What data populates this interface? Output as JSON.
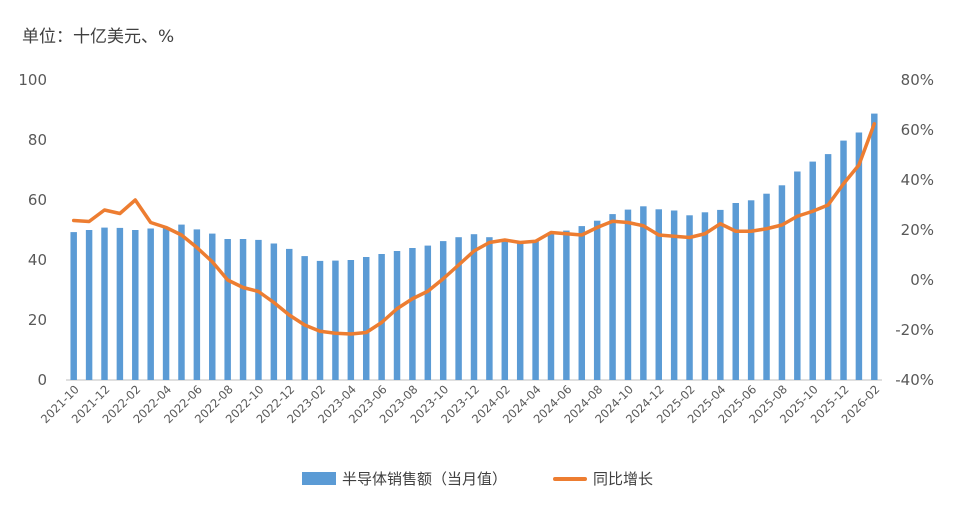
{
  "unit_label": "单位：十亿美元、%",
  "colors": {
    "bar": "#5b9bd5",
    "line": "#ed7d31",
    "axis": "#bfbfbf",
    "text": "#595959"
  },
  "legend": {
    "bar_label": "半导体销售额（当月值）",
    "line_label": "同比增长"
  },
  "chart_data": {
    "type": "bar",
    "title": "",
    "categories": [
      "2021-10",
      "2021-11",
      "2021-12",
      "2022-01",
      "2022-02",
      "2022-03",
      "2022-04",
      "2022-05",
      "2022-06",
      "2022-07",
      "2022-08",
      "2022-09",
      "2022-10",
      "2022-11",
      "2022-12",
      "2023-01",
      "2023-02",
      "2023-03",
      "2023-04",
      "2023-05",
      "2023-06",
      "2023-07",
      "2023-08",
      "2023-09",
      "2023-10",
      "2023-11",
      "2023-12",
      "2024-01",
      "2024-02",
      "2024-03",
      "2024-04",
      "2024-05",
      "2024-06",
      "2024-07",
      "2024-08",
      "2024-09",
      "2024-10",
      "2024-11",
      "2024-12",
      "2025-01",
      "2025-02",
      "2025-03",
      "2025-04",
      "2025-05",
      "2025-06",
      "2025-07",
      "2025-08",
      "2025-09",
      "2025-10",
      "2025-11",
      "2025-12",
      "2026-01",
      "2026-02"
    ],
    "x_tick_labels": [
      "2021-10",
      "2021-12",
      "2022-02",
      "2022-04",
      "2022-06",
      "2022-08",
      "2022-10",
      "2022-12",
      "2023-02",
      "2023-04",
      "2023-06",
      "2023-08",
      "2023-10",
      "2023-12",
      "2024-02",
      "2024-04",
      "2024-06",
      "2024-08",
      "2024-10",
      "2024-12",
      "2025-02",
      "2025-04",
      "2025-06",
      "2025-08",
      "2025-10",
      "2025-12",
      "2026-02"
    ],
    "series": [
      {
        "name": "半导体销售额（当月值）",
        "type": "bar",
        "axis": "left",
        "values": [
          49.3,
          50.0,
          50.8,
          50.7,
          50.0,
          50.5,
          51.0,
          51.8,
          50.2,
          48.8,
          47.0,
          47.0,
          46.7,
          45.5,
          43.7,
          41.3,
          39.7,
          39.8,
          40.0,
          41.0,
          42.0,
          43.0,
          44.0,
          44.8,
          46.3,
          47.6,
          48.6,
          47.6,
          46.2,
          45.9,
          46.4,
          49.2,
          49.8,
          51.3,
          53.1,
          55.3,
          56.8,
          57.9,
          56.9,
          56.5,
          54.9,
          55.9,
          56.7,
          59.0,
          59.9,
          62.1,
          64.9,
          69.5,
          72.8,
          75.3,
          79.8,
          82.5,
          88.8
        ]
      },
      {
        "name": "同比增长",
        "type": "line",
        "axis": "right",
        "values": [
          23.8,
          23.4,
          28.0,
          26.6,
          32.0,
          23.0,
          21.0,
          18.0,
          13.0,
          7.3,
          0.0,
          -3.0,
          -4.6,
          -9.0,
          -14.0,
          -18.0,
          -20.5,
          -21.3,
          -21.6,
          -21.0,
          -17.0,
          -11.5,
          -7.5,
          -4.5,
          0.5,
          6.0,
          11.6,
          15.0,
          16.0,
          15.0,
          15.5,
          19.0,
          18.5,
          18.0,
          21.0,
          23.5,
          23.0,
          21.7,
          18.0,
          17.5,
          17.0,
          18.5,
          22.5,
          19.5,
          19.5,
          20.5,
          22.0,
          25.5,
          27.5,
          30.0,
          38.5,
          46.0,
          62.5
        ]
      }
    ],
    "y_left": {
      "ylim": [
        0,
        100
      ],
      "ticks": [
        0,
        20,
        40,
        60,
        80,
        100
      ]
    },
    "y_right": {
      "ylim": [
        -40,
        80
      ],
      "ticks": [
        "-40%",
        "-20%",
        "0%",
        "20%",
        "40%",
        "60%",
        "80%"
      ]
    },
    "grid": false,
    "legend_position": "bottom"
  }
}
